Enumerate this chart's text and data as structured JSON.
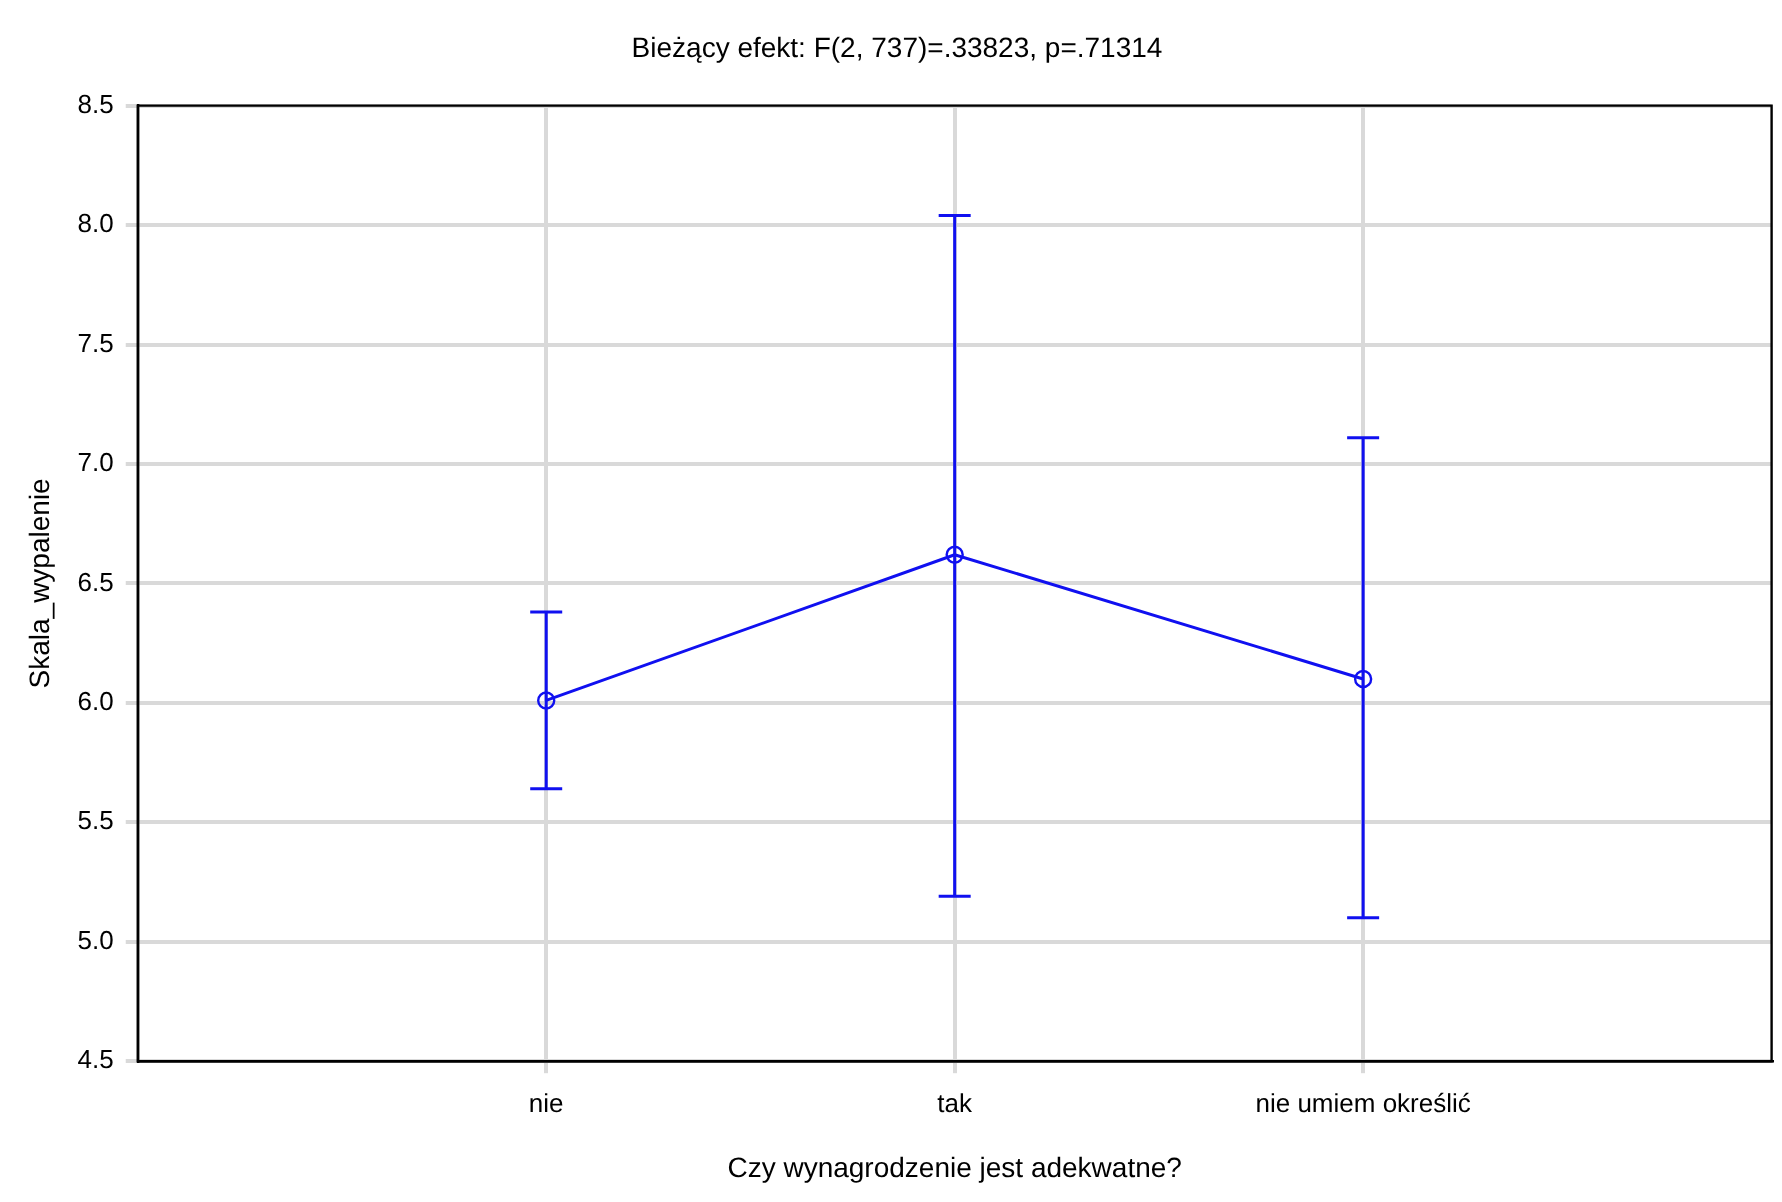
{
  "chart_data": {
    "type": "line",
    "title": "Bieżący efekt: F(2, 737)=.33823, p=.71314",
    "xlabel": "Czy wynagrodzenie jest adekwatne?",
    "ylabel": "Skala_wypalenie",
    "categories": [
      "nie",
      "tak",
      "nie umiem określić"
    ],
    "series": [
      {
        "color": "#1010f0",
        "values": [
          6.01,
          6.62,
          6.1
        ],
        "errors": [
          [
            5.64,
            6.38
          ],
          [
            5.19,
            8.04
          ],
          [
            5.1,
            7.11
          ]
        ]
      }
    ],
    "ylim": [
      4.5,
      8.5
    ],
    "yticks": [
      {
        "value": 4.5,
        "label": "4.5"
      },
      {
        "value": 5,
        "label": "5.0"
      },
      {
        "value": 5.5,
        "label": "5.5"
      },
      {
        "value": 6,
        "label": "6.0"
      },
      {
        "value": 6.5,
        "label": "6.5"
      },
      {
        "value": 7,
        "label": "7.0"
      },
      {
        "value": 7.5,
        "label": "7.5"
      },
      {
        "value": 8,
        "label": "8.0"
      },
      {
        "value": 8.5,
        "label": "8.5"
      }
    ],
    "grid": true,
    "legend": false,
    "marker": "circle",
    "line_style": "solid"
  }
}
